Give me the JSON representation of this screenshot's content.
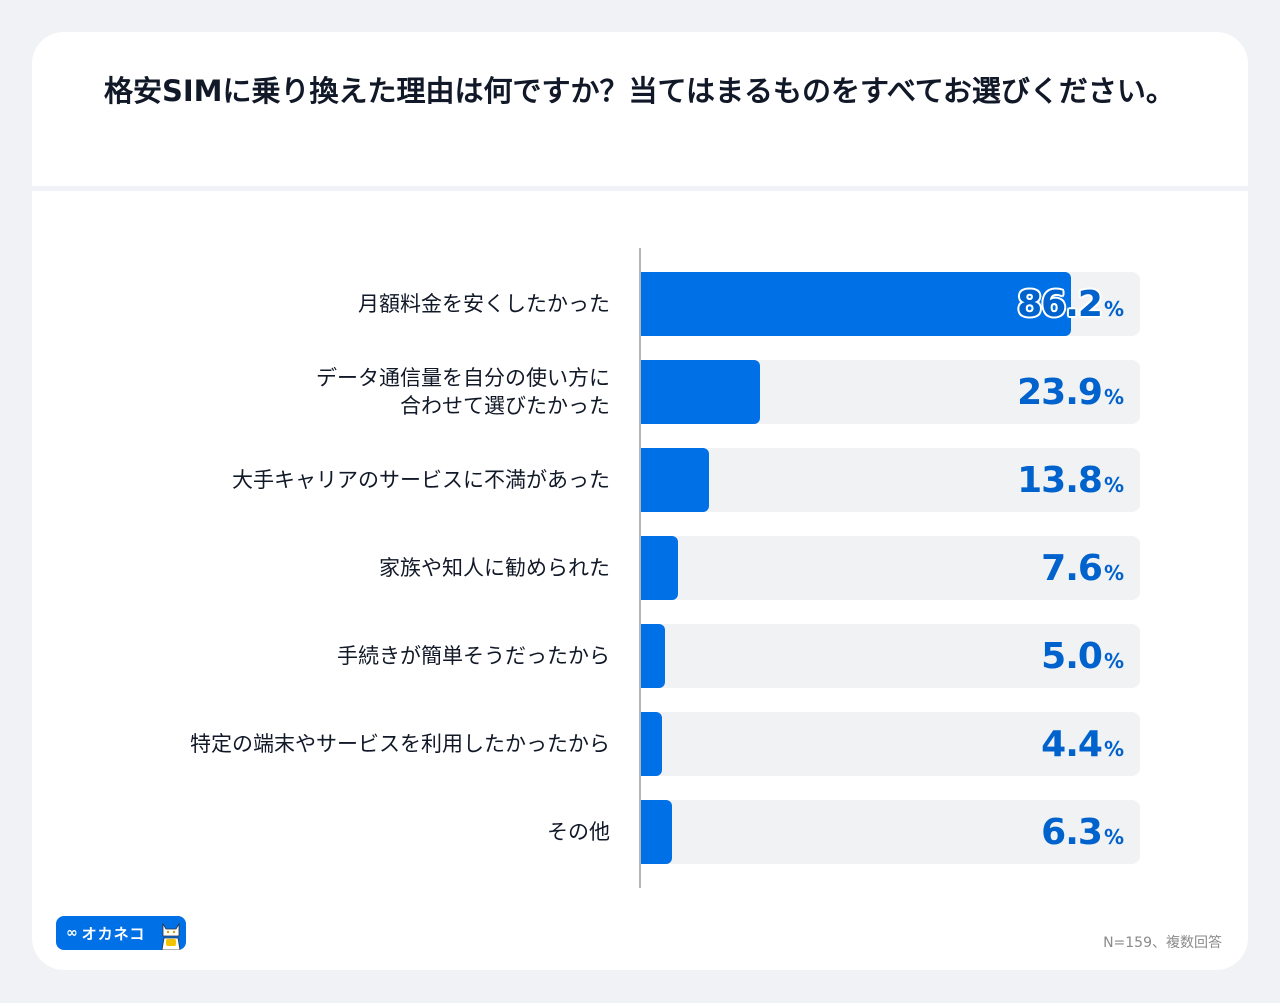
{
  "title": "格安SIMに乗り換えた理由は何ですか？当てはまるものをすべてお選びください。",
  "note": "N=159、複数回答",
  "logo": {
    "glyph": "∞",
    "brand": "オカネコ"
  },
  "colors": {
    "bar": "#0070e6",
    "track": "#f1f2f4",
    "value_text": "#0062cc",
    "label_text": "#111827"
  },
  "chart_data": {
    "type": "bar",
    "orientation": "horizontal",
    "title": "格安SIMに乗り換えた理由は何ですか？当てはまるものをすべてお選びください。",
    "xlabel": "",
    "ylabel": "",
    "xlim": [
      0,
      100
    ],
    "unit": "%",
    "grid": false,
    "categories": [
      "月額料金を安くしたかった",
      "データ通信量を自分の使い方に\n合わせて選びたかった",
      "大手キャリアのサービスに不満があった",
      "家族や知人に勧められた",
      "手続きが簡単そうだったから",
      "特定の端末やサービスを利用したかったから",
      "その他"
    ],
    "values": [
      86.2,
      23.9,
      13.8,
      7.6,
      5.0,
      4.4,
      6.3
    ],
    "value_labels": [
      "86.2",
      "23.9",
      "13.8",
      "7.6",
      "5.0",
      "4.4",
      "6.3"
    ],
    "annotation": "N=159、複数回答"
  }
}
